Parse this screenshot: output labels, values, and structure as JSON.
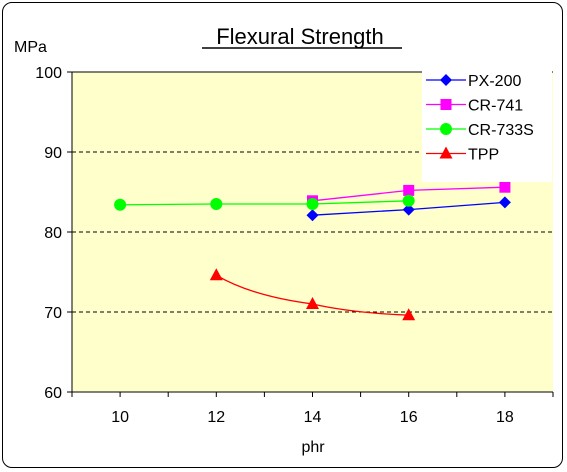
{
  "chart_data": {
    "type": "line",
    "title": "Flexural Strength",
    "ylabel": "MPa",
    "xlabel": "phr",
    "x_ticks": [
      10,
      12,
      14,
      16,
      18
    ],
    "y_ticks": [
      60,
      70,
      80,
      90,
      100
    ],
    "xlim": [
      9,
      19
    ],
    "ylim": [
      60,
      100
    ],
    "grid": "horizontal-dashed",
    "legend_position": "top-right",
    "plot_background": "#FFFFCC",
    "series": [
      {
        "name": "PX-200",
        "color": "#0000FF",
        "marker": "diamond",
        "x": [
          14,
          16,
          18
        ],
        "y": [
          82.1,
          82.8,
          83.7
        ]
      },
      {
        "name": "CR-741",
        "color": "#FF00FF",
        "marker": "square",
        "x": [
          14,
          16,
          18
        ],
        "y": [
          83.9,
          85.2,
          85.6
        ]
      },
      {
        "name": "CR-733S",
        "color": "#00FF00",
        "marker": "circle",
        "x": [
          10,
          12,
          14,
          16
        ],
        "y": [
          83.4,
          83.5,
          83.5,
          83.9
        ]
      },
      {
        "name": "TPP",
        "color": "#FF0000",
        "marker": "triangle",
        "x": [
          12,
          14,
          16
        ],
        "y": [
          74.6,
          71.0,
          69.6
        ]
      }
    ]
  }
}
